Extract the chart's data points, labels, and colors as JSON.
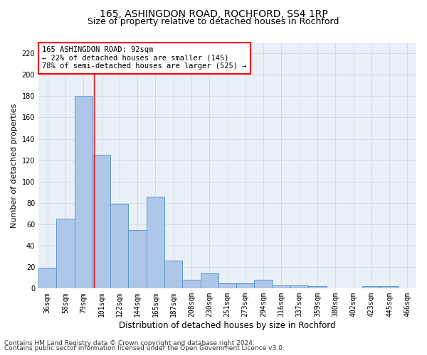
{
  "title1": "165, ASHINGDON ROAD, ROCHFORD, SS4 1RP",
  "title2": "Size of property relative to detached houses in Rochford",
  "xlabel": "Distribution of detached houses by size in Rochford",
  "ylabel": "Number of detached properties",
  "footer1": "Contains HM Land Registry data © Crown copyright and database right 2024.",
  "footer2": "Contains public sector information licensed under the Open Government Licence v3.0.",
  "bin_labels": [
    "36sqm",
    "58sqm",
    "79sqm",
    "101sqm",
    "122sqm",
    "144sqm",
    "165sqm",
    "187sqm",
    "208sqm",
    "230sqm",
    "251sqm",
    "273sqm",
    "294sqm",
    "316sqm",
    "337sqm",
    "359sqm",
    "380sqm",
    "402sqm",
    "423sqm",
    "445sqm",
    "466sqm"
  ],
  "bar_heights": [
    19,
    65,
    180,
    125,
    79,
    55,
    86,
    26,
    8,
    14,
    5,
    5,
    8,
    3,
    3,
    2,
    0,
    0,
    2,
    2,
    0
  ],
  "bar_color": "#aec6e8",
  "bar_edge_color": "#5b9bd5",
  "ylim": [
    0,
    230
  ],
  "yticks": [
    0,
    20,
    40,
    60,
    80,
    100,
    120,
    140,
    160,
    180,
    200,
    220
  ],
  "annotation_title": "165 ASHINGDON ROAD: 92sqm",
  "annotation_line1": "← 22% of detached houses are smaller (145)",
  "annotation_line2": "78% of semi-detached houses are larger (525) →",
  "grid_color": "#d0d8e8",
  "background_color": "#eaf0f8",
  "title1_fontsize": 10,
  "title2_fontsize": 9,
  "xlabel_fontsize": 8.5,
  "ylabel_fontsize": 8,
  "tick_fontsize": 7,
  "footer_fontsize": 6.5,
  "ann_fontsize": 7.5
}
